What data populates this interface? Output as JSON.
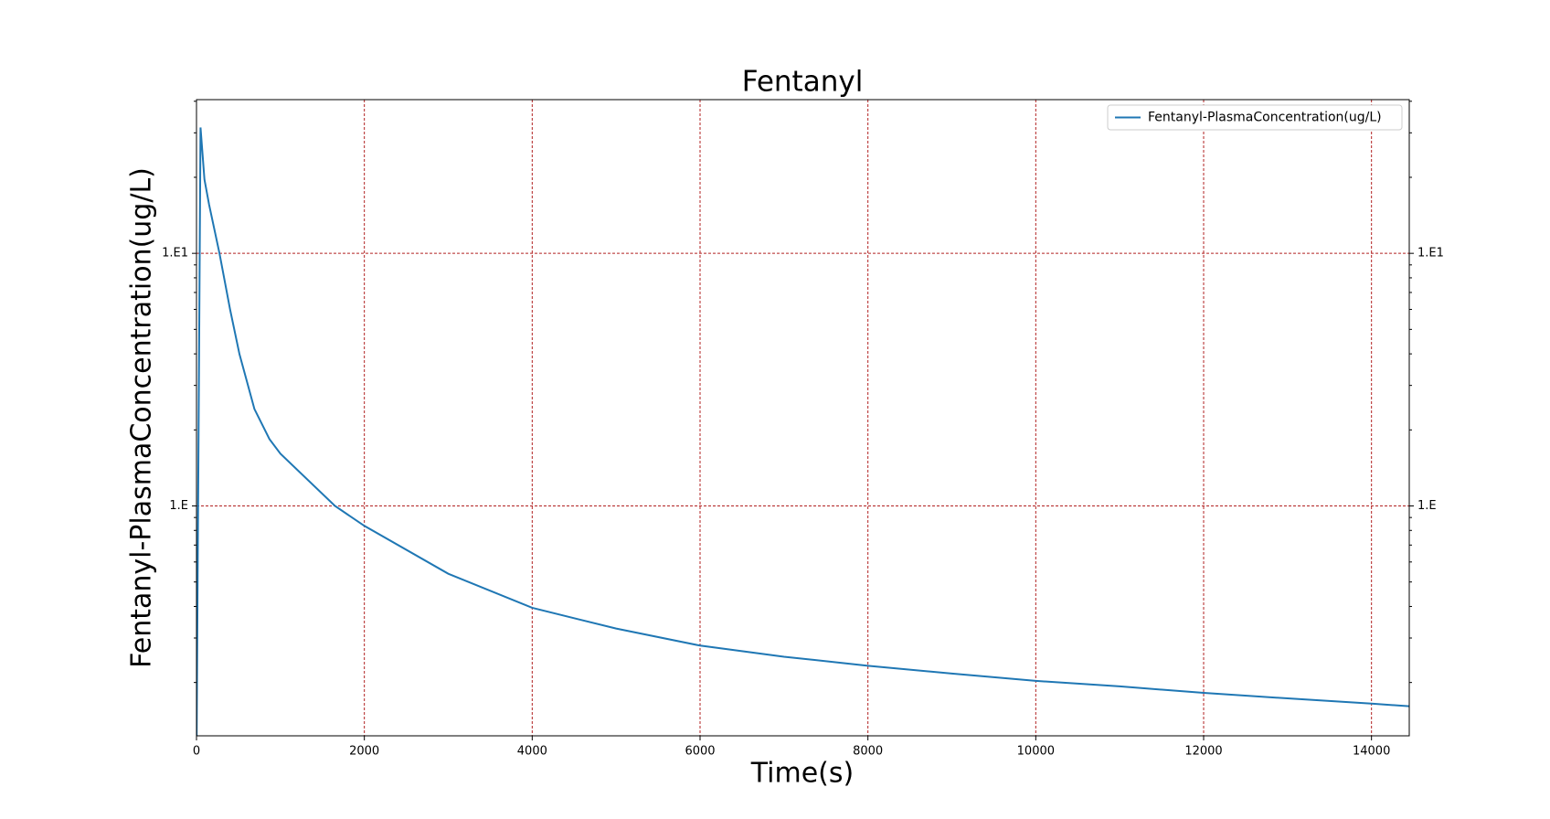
{
  "chart_data": {
    "type": "line",
    "title": "Fentanyl",
    "x_label": "Time(s)",
    "y_label": "Fentanyl-PlasmaConcentration(ug/L)",
    "x": [
      0,
      48,
      95,
      150,
      274,
      400,
      512,
      690,
      869,
      1000,
      1650,
      2000,
      3000,
      4000,
      5000,
      6000,
      7000,
      8000,
      9000,
      10000,
      11000,
      12000,
      13000,
      14000,
      14450
    ],
    "series": [
      {
        "name": "Fentanyl-PlasmaConcentration(ug/L)",
        "color": "#1f77b4",
        "values": [
          0.1,
          31.5,
          19.6,
          15.6,
          10,
          6.0,
          3.99,
          2.42,
          1.84,
          1.61,
          1.0,
          0.834,
          0.539,
          0.395,
          0.327,
          0.28,
          0.253,
          0.233,
          0.217,
          0.203,
          0.193,
          0.182,
          0.173,
          0.165,
          0.161
        ]
      }
    ],
    "xlim": [
      0,
      14450
    ],
    "ylim": [
      0.123,
      40.6
    ],
    "y_scale": "log",
    "xticks": [
      0,
      2000,
      4000,
      6000,
      8000,
      10000,
      12000,
      14000
    ],
    "yticks": [
      {
        "value": 1,
        "label": "1.E"
      },
      {
        "value": 10,
        "label": "1.E1"
      }
    ],
    "yticks_minor": [
      0.2,
      0.3,
      0.4,
      0.5,
      0.6,
      0.7,
      0.8,
      0.9,
      2,
      3,
      4,
      5,
      6,
      7,
      8,
      9,
      20,
      30,
      40
    ],
    "grid": true,
    "grid_color": "#b22222",
    "legend": "upper right"
  }
}
